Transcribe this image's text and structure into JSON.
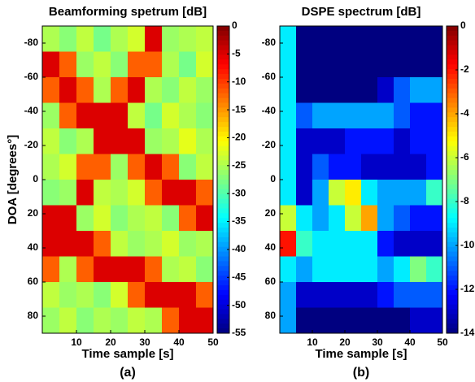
{
  "chart_data": [
    {
      "type": "heatmap",
      "title": "Beamforming spetrum [dB]",
      "xlabel": "Time sample [s]",
      "ylabel": "DOA [degrees°]",
      "panel_label": "(a)",
      "colormap": "jet",
      "x": [
        2.5,
        7.5,
        12.5,
        17.5,
        22.5,
        27.5,
        32.5,
        37.5,
        42.5,
        47.5
      ],
      "y": [
        -82.5,
        -67.5,
        -52.5,
        -37.5,
        -22.5,
        -7.5,
        7.5,
        22.5,
        37.5,
        52.5,
        67.5,
        82.5
      ],
      "values": [
        [
          -25,
          -27,
          -24,
          -28,
          -25,
          -23,
          -5,
          -26,
          -25,
          -24
        ],
        [
          -5,
          -12,
          -26,
          -24,
          -27,
          -12,
          -12,
          -25,
          -28,
          -23
        ],
        [
          -12,
          -5,
          -12,
          -25,
          -12,
          -5,
          -25,
          -27,
          -24,
          -26
        ],
        [
          -26,
          -12,
          -5,
          -5,
          -5,
          -24,
          -28,
          -23,
          -25,
          -27
        ],
        [
          -24,
          -27,
          -25,
          -5,
          -5,
          -5,
          -26,
          -25,
          -22,
          -25
        ],
        [
          -25,
          -23,
          -12,
          -12,
          -26,
          -12,
          -5,
          -12,
          -27,
          -24
        ],
        [
          -27,
          -26,
          -5,
          -24,
          -25,
          -23,
          -12,
          -5,
          -5,
          -12
        ],
        [
          -5,
          -5,
          -26,
          -23,
          -27,
          -25,
          -24,
          -27,
          -12,
          -5
        ],
        [
          -5,
          -5,
          -5,
          -12,
          -24,
          -26,
          -25,
          -23,
          -26,
          -25
        ],
        [
          -12,
          -25,
          -12,
          -5,
          -5,
          -5,
          -12,
          -25,
          -24,
          -27
        ],
        [
          -24,
          -26,
          -25,
          -27,
          -23,
          -12,
          -5,
          -5,
          -5,
          -12
        ],
        [
          -26,
          -24,
          -27,
          -25,
          -26,
          -24,
          -25,
          -12,
          -5,
          -5
        ]
      ],
      "xlim": [
        0,
        50
      ],
      "xticks": [
        10,
        20,
        30,
        40,
        50
      ],
      "ylim": [
        -90,
        90
      ],
      "yreverse": true,
      "yticks": [
        -80,
        -60,
        -40,
        -20,
        0,
        20,
        40,
        60,
        80
      ],
      "clim": [
        -55,
        0
      ],
      "cticks": [
        0,
        -5,
        -10,
        -15,
        -20,
        -25,
        -30,
        -35,
        -40,
        -45,
        -50,
        -55
      ]
    },
    {
      "type": "heatmap",
      "title": "DSPE spectrum [dB]",
      "xlabel": "Time sample [s]",
      "panel_label": "(b)",
      "colormap": "jet",
      "x": [
        2.5,
        7.5,
        12.5,
        17.5,
        22.5,
        27.5,
        32.5,
        37.5,
        42.5,
        47.5
      ],
      "y": [
        -82.5,
        -67.5,
        -52.5,
        -37.5,
        -22.5,
        -7.5,
        7.5,
        22.5,
        37.5,
        52.5,
        67.5,
        82.5
      ],
      "values": [
        [
          -9,
          -14,
          -14,
          -14,
          -14,
          -14,
          -14,
          -14,
          -14,
          -14
        ],
        [
          -9,
          -14,
          -14,
          -14,
          -14,
          -14,
          -14,
          -14,
          -14,
          -14
        ],
        [
          -9,
          -14,
          -14,
          -14,
          -14,
          -14,
          -13,
          -11,
          -10,
          -10
        ],
        [
          -9,
          -11,
          -10,
          -10,
          -10,
          -10,
          -10,
          -11,
          -12,
          -12
        ],
        [
          -9,
          -13,
          -13,
          -13,
          -12,
          -12,
          -12,
          -13,
          -12,
          -12
        ],
        [
          -9,
          -13,
          -11,
          -12,
          -12,
          -13,
          -13,
          -13,
          -13,
          -12
        ],
        [
          -9,
          -13,
          -10,
          -6,
          -5,
          -9,
          -10,
          -10,
          -10,
          -8
        ],
        [
          -6,
          -9,
          -10,
          -9,
          -6,
          -4,
          -10,
          -11,
          -12,
          -12
        ],
        [
          -2,
          -8,
          -9,
          -9,
          -9,
          -9,
          -12,
          -13,
          -13,
          -13
        ],
        [
          -9,
          -10,
          -9,
          -9,
          -9,
          -9,
          -10,
          -9,
          -7,
          -8
        ],
        [
          -10,
          -13,
          -13,
          -13,
          -13,
          -13,
          -12,
          -11,
          -11,
          -11
        ],
        [
          -10,
          -14,
          -14,
          -14,
          -14,
          -14,
          -14,
          -14,
          -13,
          -13
        ]
      ],
      "xlim": [
        0,
        50
      ],
      "xticks": [
        10,
        20,
        30,
        40,
        50
      ],
      "ylim": [
        -90,
        90
      ],
      "yreverse": true,
      "yticks": [
        -80,
        -60,
        -40,
        -20,
        0,
        20,
        40,
        60,
        80
      ],
      "clim": [
        -14,
        0
      ],
      "cticks": [
        0,
        -2,
        -4,
        -6,
        -8,
        -10,
        -12,
        -14
      ]
    }
  ]
}
